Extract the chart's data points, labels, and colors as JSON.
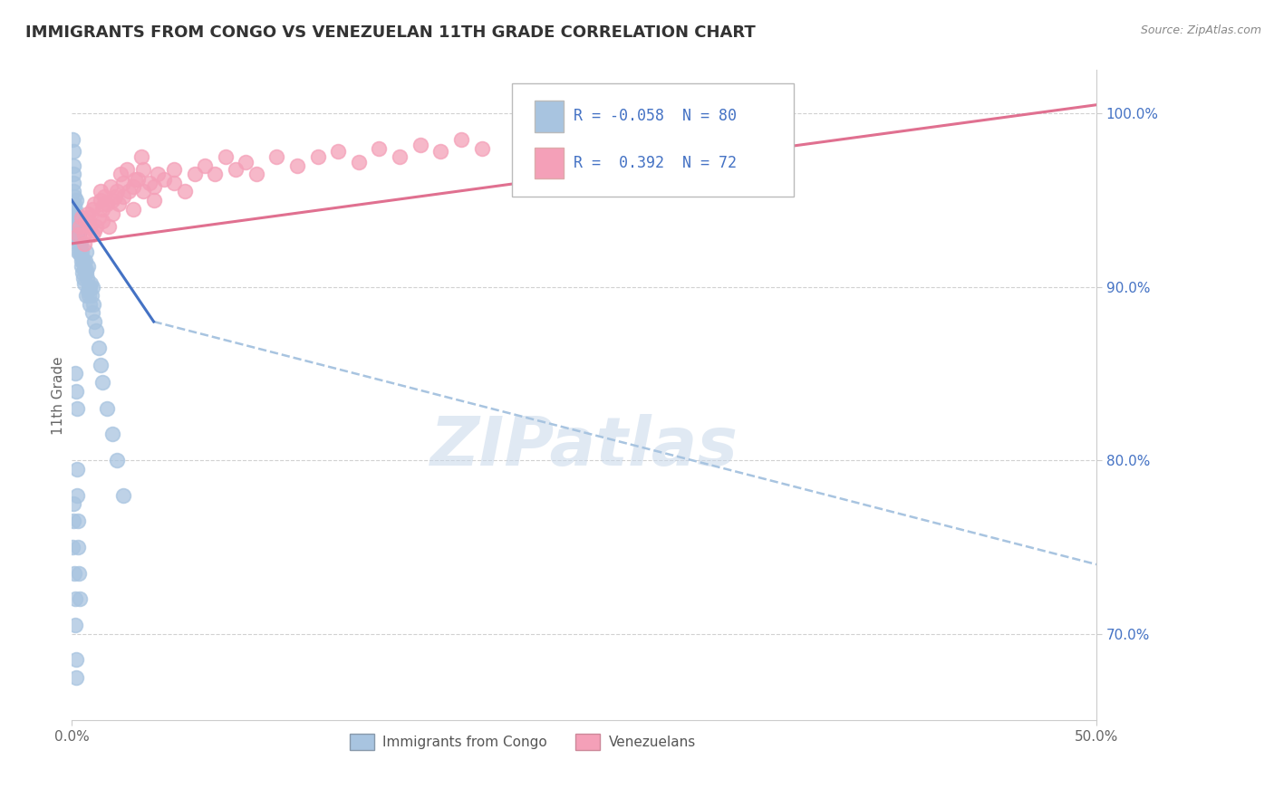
{
  "title": "IMMIGRANTS FROM CONGO VS VENEZUELAN 11TH GRADE CORRELATION CHART",
  "source": "Source: ZipAtlas.com",
  "ylabel": "11th Grade",
  "xlim": [
    0.0,
    50.0
  ],
  "ylim": [
    65.0,
    102.5
  ],
  "right_yticks": [
    70.0,
    80.0,
    90.0,
    100.0
  ],
  "right_ytick_labels": [
    "70.0%",
    "80.0%",
    "90.0%",
    "100.0%"
  ],
  "congo_color": "#a8c4e0",
  "venezuela_color": "#f4a0b8",
  "congo_line_color": "#4472c4",
  "congo_line_dash_color": "#a8c4e0",
  "venezuela_line_color": "#e07090",
  "R_congo": -0.058,
  "N_congo": 80,
  "R_venezuela": 0.392,
  "N_venezuela": 72,
  "background_color": "#ffffff",
  "grid_color": "#cccccc",
  "watermark": "ZIPatlas",
  "congo_x": [
    0.05,
    0.07,
    0.08,
    0.09,
    0.1,
    0.1,
    0.12,
    0.13,
    0.15,
    0.15,
    0.17,
    0.18,
    0.2,
    0.2,
    0.22,
    0.23,
    0.25,
    0.25,
    0.28,
    0.3,
    0.3,
    0.32,
    0.35,
    0.35,
    0.38,
    0.4,
    0.4,
    0.42,
    0.45,
    0.48,
    0.5,
    0.5,
    0.52,
    0.55,
    0.58,
    0.6,
    0.62,
    0.65,
    0.68,
    0.7,
    0.7,
    0.72,
    0.75,
    0.78,
    0.8,
    0.82,
    0.85,
    0.88,
    0.9,
    0.92,
    0.95,
    1.0,
    1.0,
    1.05,
    1.1,
    1.2,
    1.3,
    1.4,
    1.5,
    1.7,
    2.0,
    2.2,
    2.5,
    0.15,
    0.2,
    0.25,
    0.05,
    0.08,
    0.1,
    0.12,
    0.15,
    0.18,
    0.2,
    0.22,
    0.25,
    0.28,
    0.3,
    0.32,
    0.35,
    0.38
  ],
  "congo_y": [
    98.5,
    97.8,
    97.0,
    96.5,
    96.0,
    95.5,
    95.2,
    94.8,
    94.5,
    93.8,
    93.5,
    93.0,
    95.0,
    94.2,
    93.8,
    93.2,
    94.0,
    93.5,
    92.8,
    93.0,
    92.5,
    92.0,
    93.5,
    92.8,
    92.5,
    93.2,
    92.0,
    91.8,
    92.5,
    91.5,
    92.0,
    91.2,
    90.8,
    91.5,
    90.5,
    91.0,
    90.2,
    91.5,
    90.8,
    92.0,
    89.5,
    91.0,
    90.5,
    89.8,
    91.2,
    90.0,
    89.5,
    90.0,
    89.0,
    90.2,
    89.5,
    88.5,
    90.0,
    89.0,
    88.0,
    87.5,
    86.5,
    85.5,
    84.5,
    83.0,
    81.5,
    80.0,
    78.0,
    85.0,
    84.0,
    83.0,
    75.0,
    77.5,
    76.5,
    73.5,
    72.0,
    70.5,
    68.5,
    67.5,
    79.5,
    78.0,
    76.5,
    75.0,
    73.5,
    72.0
  ],
  "venezuela_x": [
    0.4,
    0.5,
    0.6,
    0.7,
    0.8,
    0.9,
    1.0,
    1.0,
    1.1,
    1.2,
    1.3,
    1.4,
    1.5,
    1.5,
    1.6,
    1.7,
    1.8,
    2.0,
    2.0,
    2.2,
    2.3,
    2.5,
    2.5,
    2.8,
    3.0,
    3.0,
    3.2,
    3.5,
    3.5,
    3.8,
    4.0,
    4.2,
    4.5,
    5.0,
    5.5,
    6.0,
    6.5,
    7.0,
    7.5,
    8.0,
    8.5,
    9.0,
    10.0,
    11.0,
    12.0,
    13.0,
    14.0,
    15.0,
    16.0,
    17.0,
    18.0,
    19.0,
    20.0,
    22.0,
    24.0,
    26.0,
    28.0,
    30.0,
    0.3,
    0.6,
    0.8,
    1.1,
    1.4,
    1.6,
    1.9,
    2.1,
    2.4,
    2.7,
    3.1,
    3.4,
    4.0,
    5.0
  ],
  "venezuela_y": [
    93.5,
    94.0,
    93.0,
    93.8,
    94.2,
    93.5,
    94.5,
    93.0,
    94.8,
    93.5,
    94.0,
    95.0,
    94.5,
    93.8,
    95.2,
    94.8,
    93.5,
    95.0,
    94.2,
    95.5,
    94.8,
    95.2,
    96.0,
    95.5,
    95.8,
    94.5,
    96.2,
    95.5,
    96.8,
    96.0,
    95.8,
    96.5,
    96.2,
    96.8,
    95.5,
    96.5,
    97.0,
    96.5,
    97.5,
    96.8,
    97.2,
    96.5,
    97.5,
    97.0,
    97.5,
    97.8,
    97.2,
    98.0,
    97.5,
    98.2,
    97.8,
    98.5,
    98.0,
    98.5,
    98.8,
    99.0,
    99.2,
    99.5,
    93.0,
    92.5,
    94.0,
    93.2,
    95.5,
    94.8,
    95.8,
    95.2,
    96.5,
    96.8,
    96.2,
    97.5,
    95.0,
    96.0
  ],
  "congo_trend_x0": 0.0,
  "congo_trend_y0": 95.0,
  "congo_trend_x1": 4.0,
  "congo_trend_y1": 88.0,
  "congo_trend_dash_x0": 4.0,
  "congo_trend_dash_y0": 88.0,
  "congo_trend_dash_x1": 50.0,
  "congo_trend_dash_y1": 74.0,
  "venezuela_trend_x0": 0.0,
  "venezuela_trend_y0": 92.5,
  "venezuela_trend_x1": 50.0,
  "venezuela_trend_y1": 100.5
}
